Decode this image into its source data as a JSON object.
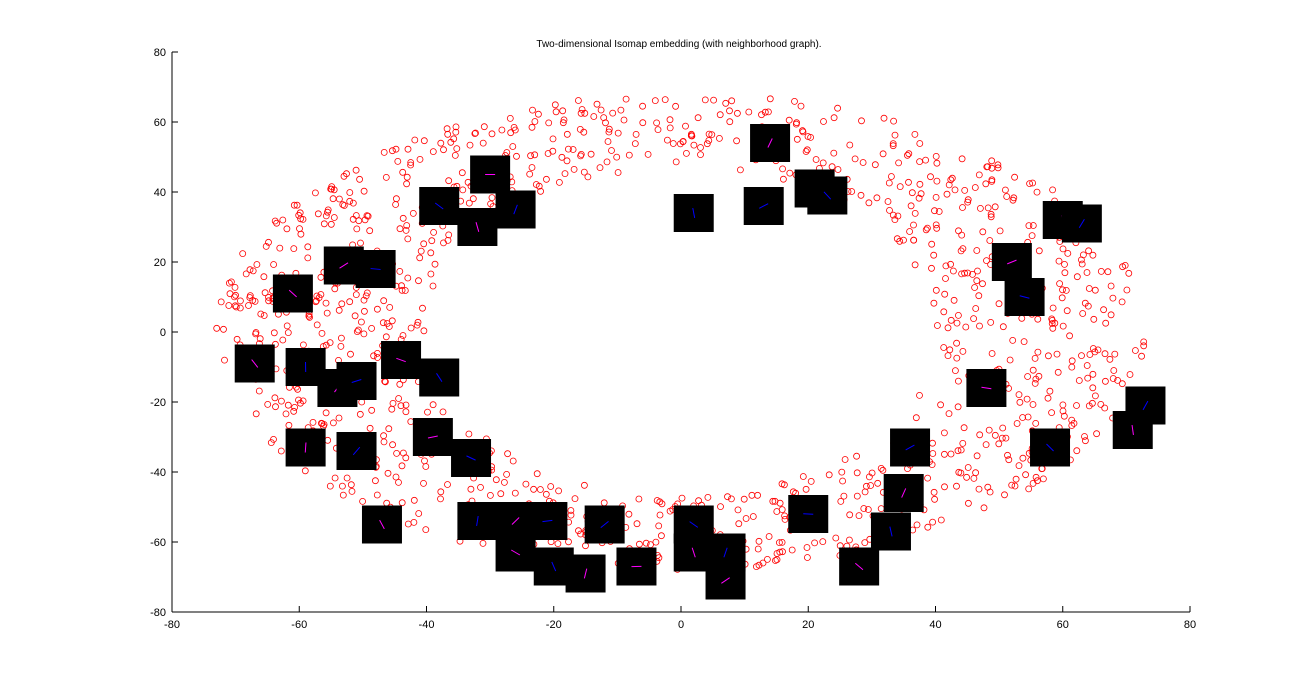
{
  "chart_data": {
    "type": "scatter",
    "title": "Two-dimensional Isomap embedding (with neighborhood graph).",
    "xlabel": "",
    "ylabel": "",
    "xlim": [
      -80,
      80
    ],
    "ylim": [
      -80,
      80
    ],
    "xticks": [
      -80,
      -60,
      -40,
      -20,
      0,
      20,
      40,
      60,
      80
    ],
    "yticks": [
      -80,
      -60,
      -40,
      -20,
      0,
      20,
      40,
      60,
      80
    ],
    "grid": false,
    "colors": {
      "marker": "#ff0000",
      "image_patch": "#000000",
      "patch_stroke_a": "#0000ff",
      "patch_stroke_b": "#ff00ff"
    },
    "ring": {
      "description_shape": "annulus",
      "center": [
        0,
        0
      ],
      "outer_rx": 73,
      "outer_ry": 68,
      "inner_rx": 40,
      "inner_ry": 47,
      "point_count": 1200,
      "marker": "open-circle"
    },
    "image_patches": [
      [
        -30,
        45
      ],
      [
        -38,
        36
      ],
      [
        -32,
        30
      ],
      [
        -26,
        35
      ],
      [
        -53,
        19
      ],
      [
        -48,
        18
      ],
      [
        -61,
        11
      ],
      [
        2,
        34
      ],
      [
        14,
        54
      ],
      [
        13,
        36
      ],
      [
        21,
        41
      ],
      [
        23,
        39
      ],
      [
        60,
        32
      ],
      [
        63,
        31
      ],
      [
        52,
        20
      ],
      [
        54,
        10
      ],
      [
        -67,
        -9
      ],
      [
        -59,
        -10
      ],
      [
        -54,
        -16
      ],
      [
        -51,
        -14
      ],
      [
        -44,
        -8
      ],
      [
        -38,
        -13
      ],
      [
        -59,
        -33
      ],
      [
        -51,
        -34
      ],
      [
        -39,
        -30
      ],
      [
        -33,
        -36
      ],
      [
        -47,
        -55
      ],
      [
        -32,
        -54
      ],
      [
        -26,
        -54
      ],
      [
        -21,
        -54
      ],
      [
        -26,
        -63
      ],
      [
        -20,
        -67
      ],
      [
        -15,
        -69
      ],
      [
        -12,
        -55
      ],
      [
        -7,
        -67
      ],
      [
        2,
        -55
      ],
      [
        2,
        -63
      ],
      [
        7,
        -63
      ],
      [
        7,
        -71
      ],
      [
        20,
        -52
      ],
      [
        28,
        -67
      ],
      [
        33,
        -57
      ],
      [
        35,
        -46
      ],
      [
        36,
        -33
      ],
      [
        48,
        -16
      ],
      [
        58,
        -33
      ],
      [
        71,
        -28
      ],
      [
        73,
        -21
      ]
    ]
  }
}
